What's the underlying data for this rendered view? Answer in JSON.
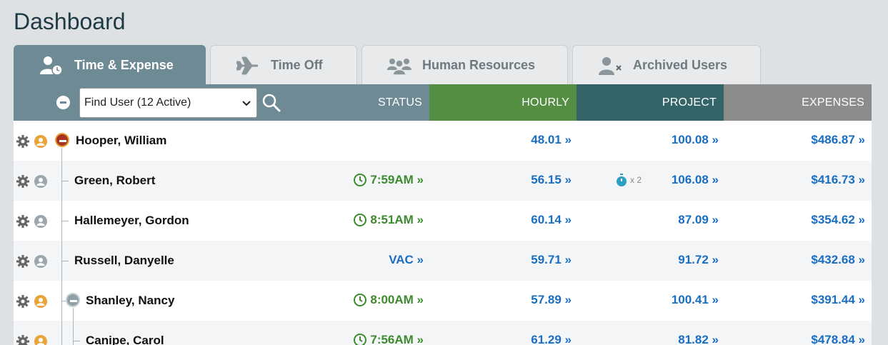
{
  "page": {
    "title": "Dashboard"
  },
  "tabs": [
    {
      "label": "Time & Expense",
      "icon": "user-clock-icon",
      "active": true
    },
    {
      "label": "Time Off",
      "icon": "airplane-icon",
      "active": false
    },
    {
      "label": "Human Resources",
      "icon": "users-group-icon",
      "active": false
    },
    {
      "label": "Archived Users",
      "icon": "user-remove-icon",
      "active": false
    }
  ],
  "toolbar": {
    "find_user_value": "Find User (12 Active)",
    "status_header": "STATUS",
    "hourly_header": "HOURLY",
    "project_header": "PROJECT",
    "expenses_header": "EXPENSES"
  },
  "colors": {
    "accent": "#6e8a94",
    "hourly": "#538e42",
    "project": "#336468",
    "expenses": "#8c8c8c",
    "manager_orange": "#e8a33b",
    "user_gray": "#9aa7ad",
    "link_blue": "#1a6ec2",
    "time_green": "#3e8a2f"
  },
  "rows": [
    {
      "name": "Hooper, William",
      "role": "manager",
      "status": "",
      "hourly": "48.01 »",
      "project": "100.08 »",
      "expenses": "$486.87 »"
    },
    {
      "name": "Green, Robert",
      "role": "user",
      "status": "7:59AM »",
      "hourly": "56.15 »",
      "timer": "x 2",
      "project": "106.08 »",
      "expenses": "$416.73 »"
    },
    {
      "name": "Hallemeyer, Gordon",
      "role": "user",
      "status": "8:51AM »",
      "hourly": "60.14 »",
      "project": "87.09 »",
      "expenses": "$354.62 »"
    },
    {
      "name": "Russell, Danyelle",
      "role": "user",
      "status": "VAC »",
      "hourly": "59.71 »",
      "project": "91.72 »",
      "expenses": "$432.68 »"
    },
    {
      "name": "Shanley, Nancy",
      "role": "manager",
      "status": "8:00AM »",
      "hourly": "57.89 »",
      "project": "100.41 »",
      "expenses": "$391.44 »"
    },
    {
      "name": "Canipe, Carol",
      "role": "manager",
      "status": "7:56AM »",
      "hourly": "61.29 »",
      "project": "81.82 »",
      "expenses": "$478.84 »"
    }
  ]
}
